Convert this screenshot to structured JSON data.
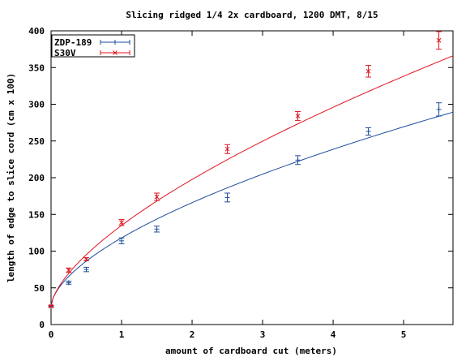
{
  "chart_data": {
    "type": "line",
    "title": "Slicing ridged 1/4 2x cardboard, 1200 DMT, 8/15",
    "xlabel": "amount of cardboard cut (meters)",
    "ylabel": "length of edge to slice cord (cm x 100)",
    "xlim": [
      0,
      5.7
    ],
    "ylim": [
      0,
      400
    ],
    "x_ticks": [
      "0",
      "1",
      "2",
      "3",
      "4",
      "5"
    ],
    "y_ticks": [
      "0",
      "50",
      "100",
      "150",
      "200",
      "250",
      "300",
      "350",
      "400"
    ],
    "grid": false,
    "legend_position": "top-left",
    "series": [
      {
        "name": "ZDP-189",
        "color": "#1f4e9c",
        "marker": "+",
        "points": [
          {
            "x": 0,
            "y": 25,
            "err": 1
          },
          {
            "x": 0.25,
            "y": 57,
            "err": 2
          },
          {
            "x": 0.5,
            "y": 75,
            "err": 3
          },
          {
            "x": 1.0,
            "y": 114,
            "err": 4
          },
          {
            "x": 1.5,
            "y": 130,
            "err": 4
          },
          {
            "x": 2.5,
            "y": 173,
            "err": 6
          },
          {
            "x": 3.5,
            "y": 224,
            "err": 6
          },
          {
            "x": 4.5,
            "y": 263,
            "err": 5
          },
          {
            "x": 5.5,
            "y": 293,
            "err": 9
          }
        ],
        "fit": {
          "a": 25,
          "b": 93,
          "p": 0.6
        }
      },
      {
        "name": "S30V",
        "color": "#e0141e",
        "marker": "x",
        "points": [
          {
            "x": 0,
            "y": 25,
            "err": 1
          },
          {
            "x": 0.25,
            "y": 74,
            "err": 3
          },
          {
            "x": 0.5,
            "y": 89,
            "err": 2
          },
          {
            "x": 1.0,
            "y": 139,
            "err": 4
          },
          {
            "x": 1.5,
            "y": 174,
            "err": 5
          },
          {
            "x": 2.5,
            "y": 239,
            "err": 6
          },
          {
            "x": 3.5,
            "y": 284,
            "err": 6
          },
          {
            "x": 4.5,
            "y": 345,
            "err": 8
          },
          {
            "x": 5.5,
            "y": 387,
            "err": 12
          }
        ],
        "fit": {
          "a": 25,
          "b": 110,
          "p": 0.65
        }
      }
    ]
  }
}
